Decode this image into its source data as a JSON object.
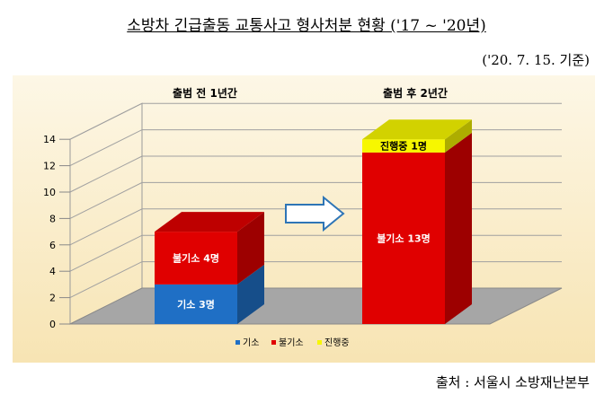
{
  "title": "소방차 긴급출동 교통사고 형사처분 현황 ('17 ~ '20년)",
  "date": "('20. 7. 15. 기준)",
  "source": "출처 : 서울시 소방재난본부",
  "chart_data": {
    "type": "bar",
    "stacked": true,
    "categories": [
      "출범 전 1년간",
      "출범 후 2년간"
    ],
    "series": [
      {
        "name": "기소",
        "values": [
          3,
          0
        ],
        "labels": [
          "기소 3명",
          ""
        ],
        "color": "#1f6fc5"
      },
      {
        "name": "불기소",
        "values": [
          4,
          13
        ],
        "labels": [
          "불기소 4명",
          "불기소 13명"
        ],
        "color": "#e00000"
      },
      {
        "name": "진행중",
        "values": [
          0,
          1
        ],
        "labels": [
          "",
          "진행중 1명"
        ],
        "color": "#f7f700"
      }
    ],
    "yticks": [
      0,
      2,
      4,
      6,
      8,
      10,
      12,
      14
    ],
    "ylim": [
      0,
      14
    ],
    "legend": "bottom"
  },
  "colors": {
    "background_top": "#fdf6e3",
    "background_bottom": "#f8e6b8",
    "floor": "#a6a6a6",
    "arrow": "#2e75b6"
  }
}
